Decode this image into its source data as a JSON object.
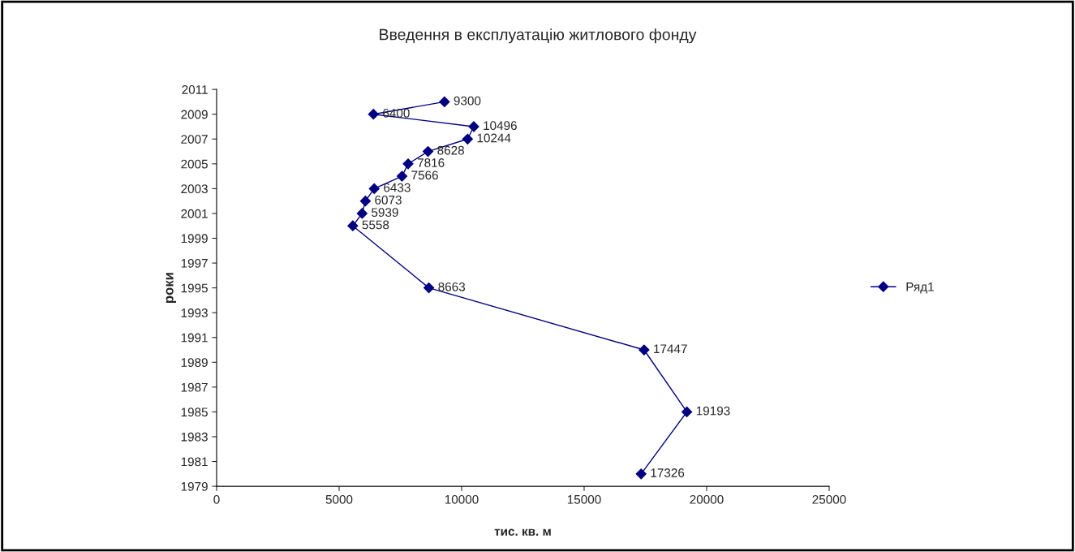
{
  "chart_data": {
    "type": "line",
    "title": "Введення в експлуатацію житлового фонду",
    "xlabel": "тис. кв. м",
    "ylabel": "роки",
    "orientation": "horizontal",
    "x": [
      1980,
      1985,
      1990,
      1995,
      2000,
      2001,
      2002,
      2003,
      2004,
      2005,
      2006,
      2007,
      2008,
      2009,
      2010
    ],
    "series": [
      {
        "name": "Ряд1",
        "color": "#000080",
        "values": [
          17326,
          19193,
          17447,
          8663,
          5558,
          5939,
          6073,
          6433,
          7566,
          7816,
          8628,
          10244,
          10496,
          6400,
          9300
        ]
      }
    ],
    "xlim": [
      0,
      25000
    ],
    "xticks": [
      0,
      5000,
      10000,
      15000,
      20000,
      25000
    ],
    "ylim": [
      1979,
      2011
    ],
    "yticks": [
      1979,
      1981,
      1983,
      1985,
      1987,
      1989,
      1991,
      1993,
      1995,
      1997,
      1999,
      2001,
      2003,
      2005,
      2007,
      2009,
      2011
    ],
    "data_labels": true,
    "marker": "diamond",
    "line_style": "solid",
    "legend": "right",
    "grid": false
  }
}
